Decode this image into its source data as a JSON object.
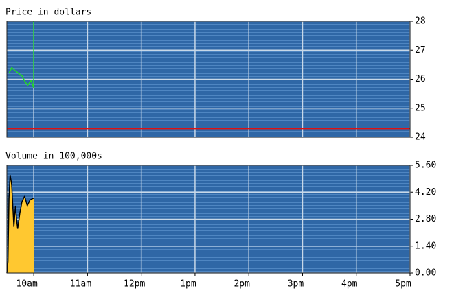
{
  "chart_data": [
    {
      "type": "line",
      "title": "Price in dollars",
      "x": [
        9.54,
        9.59,
        9.65,
        9.72,
        9.79,
        9.84,
        9.89,
        9.95,
        10.0,
        10.0
      ],
      "values": [
        26.2,
        26.4,
        26.3,
        26.2,
        26.1,
        25.9,
        25.8,
        25.95,
        25.7,
        28
      ],
      "color": "#22dd22",
      "hline": 24.3,
      "hline_color": "#dd1111",
      "xlim": [
        9.5,
        17
      ],
      "ylim": [
        24,
        28
      ],
      "yticks": [
        24,
        25,
        26,
        27,
        28
      ],
      "grid": true
    },
    {
      "type": "area",
      "title": "Volume in 100,000s",
      "x": [
        9.5,
        9.52,
        9.54,
        9.56,
        9.59,
        9.61,
        9.63,
        9.66,
        9.68,
        9.7,
        9.74,
        9.78,
        9.83,
        9.88,
        9.93,
        10.0
      ],
      "values": [
        0,
        0.6,
        3.9,
        5.1,
        4.6,
        3.5,
        2.4,
        3.5,
        2.8,
        2.3,
        3.1,
        3.7,
        4.0,
        3.5,
        3.8,
        3.9
      ],
      "color": "#ffc830",
      "xlim": [
        9.5,
        17
      ],
      "ylim": [
        0,
        5.6
      ],
      "yticks": [
        {
          "value": 0,
          "label": "0.00"
        },
        {
          "value": 1.4,
          "label": "1.40"
        },
        {
          "value": 2.8,
          "label": "2.80"
        },
        {
          "value": 4.2,
          "label": "4.20"
        },
        {
          "value": 5.6,
          "label": "5.60"
        }
      ],
      "xticks": [
        {
          "value": 10,
          "label": "10am"
        },
        {
          "value": 11,
          "label": "11am"
        },
        {
          "value": 12,
          "label": "12pm"
        },
        {
          "value": 13,
          "label": "1pm"
        },
        {
          "value": 14,
          "label": "2pm"
        },
        {
          "value": 15,
          "label": "3pm"
        },
        {
          "value": 16,
          "label": "4pm"
        },
        {
          "value": 17,
          "label": "5pm"
        }
      ],
      "grid": true
    }
  ]
}
